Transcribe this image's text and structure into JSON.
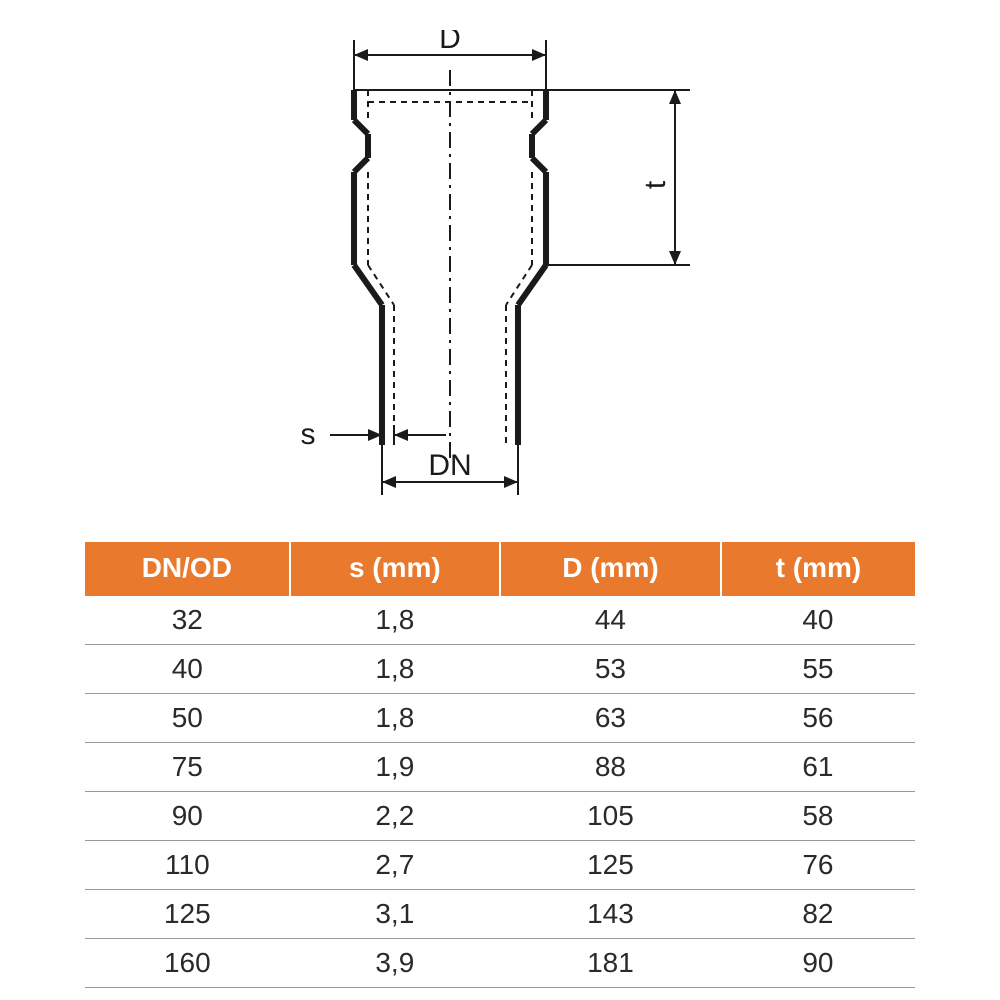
{
  "diagram": {
    "labels": {
      "D": "D",
      "t": "t",
      "s": "s",
      "DN": "DN"
    },
    "colors": {
      "line": "#1a1a1a",
      "background": "#ffffff",
      "label_fontsize": 30
    }
  },
  "table": {
    "type": "table",
    "header_bg": "#e8792d",
    "header_fg": "#ffffff",
    "row_border": "#9a9a9a",
    "cell_fg": "#2a2a2a",
    "fontsize": 28,
    "columns": [
      "DN/OD",
      "s (mm)",
      "D (mm)",
      "t (mm)"
    ],
    "rows": [
      [
        "32",
        "1,8",
        "44",
        "40"
      ],
      [
        "40",
        "1,8",
        "53",
        "55"
      ],
      [
        "50",
        "1,8",
        "63",
        "56"
      ],
      [
        "75",
        "1,9",
        "88",
        "61"
      ],
      [
        "90",
        "2,2",
        "105",
        "58"
      ],
      [
        "110",
        "2,7",
        "125",
        "76"
      ],
      [
        "125",
        "3,1",
        "143",
        "82"
      ],
      [
        "160",
        "3,9",
        "181",
        "90"
      ]
    ]
  }
}
